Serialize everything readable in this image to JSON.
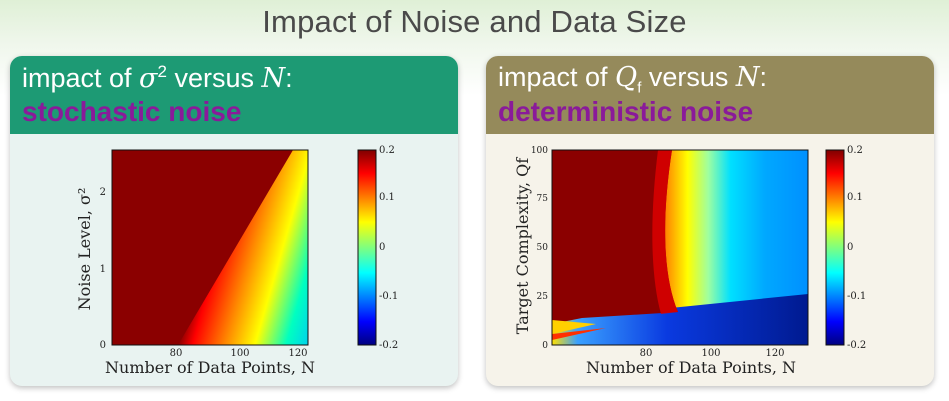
{
  "slide": {
    "title": "Impact of Noise and Data Size"
  },
  "panels": [
    {
      "header_prefix": "impact of ",
      "header_var": "σ",
      "header_sup": "2",
      "header_mid": " versus ",
      "header_n": "N",
      "header_suffix": ":",
      "subtitle": "stochastic noise",
      "header_color": "#1d9a74",
      "ylabel": "Noise Level, σ²",
      "xlabel": "Number of Data Points, N",
      "yticks": [
        "0",
        "1",
        "2"
      ],
      "xticks": [
        "80",
        "100",
        "120"
      ],
      "colorbar_ticks": [
        "0.2",
        "0.1",
        "0",
        "-0.1",
        "-0.2"
      ]
    },
    {
      "header_prefix": "impact of ",
      "header_var": "Q",
      "header_sub": "f",
      "header_mid": " versus ",
      "header_n": "N",
      "header_suffix": ":",
      "subtitle": "deterministic noise",
      "header_color": "#958a5b",
      "ylabel": "Target Complexity, Qf",
      "xlabel": "Number of Data Points, N",
      "yticks": [
        "0",
        "25",
        "50",
        "75",
        "100"
      ],
      "xticks": [
        "80",
        "100",
        "120"
      ],
      "colorbar_ticks": [
        "0.2",
        "0.1",
        "0",
        "-0.1",
        "-0.2"
      ]
    }
  ],
  "chart_data": [
    {
      "type": "heatmap",
      "xlabel": "Number of Data Points, N",
      "ylabel": "Noise Level, σ²",
      "xticks": [
        80,
        100,
        120
      ],
      "yticks": [
        0,
        1,
        2
      ],
      "color_range": [
        -0.2,
        0.2
      ],
      "colorbar_ticks": [
        0.2,
        0.1,
        0,
        -0.1,
        -0.2
      ],
      "colormap": "jet"
    },
    {
      "type": "heatmap",
      "xlabel": "Number of Data Points, N",
      "ylabel": "Target Complexity, Qf",
      "xticks": [
        80,
        100,
        120
      ],
      "yticks": [
        0,
        25,
        50,
        75,
        100
      ],
      "color_range": [
        -0.2,
        0.2
      ],
      "colorbar_ticks": [
        0.2,
        0.1,
        0,
        -0.1,
        -0.2
      ],
      "colormap": "jet"
    }
  ]
}
